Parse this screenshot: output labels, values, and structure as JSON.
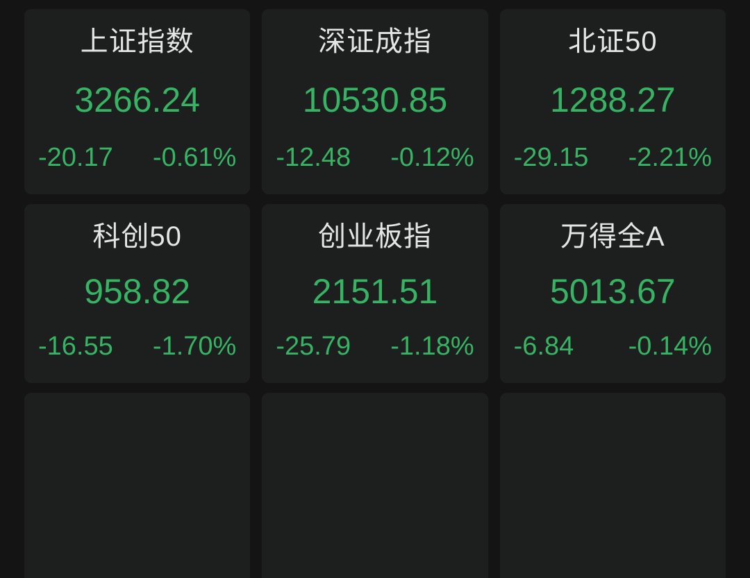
{
  "colors": {
    "page_background": "#131413",
    "card_background": "#1d1f1e",
    "title_text": "#e4e6e5",
    "down_green": "#37b463"
  },
  "cards": [
    {
      "title": "上证指数",
      "value": "3266.24",
      "change": "-20.17",
      "pct": "-0.61%"
    },
    {
      "title": "深证成指",
      "value": "10530.85",
      "change": "-12.48",
      "pct": "-0.12%"
    },
    {
      "title": "北证50",
      "value": "1288.27",
      "change": "-29.15",
      "pct": "-2.21%"
    },
    {
      "title": "科创50",
      "value": "958.82",
      "change": "-16.55",
      "pct": "-1.70%"
    },
    {
      "title": "创业板指",
      "value": "2151.51",
      "change": "-25.79",
      "pct": "-1.18%"
    },
    {
      "title": "万得全A",
      "value": "5013.67",
      "change": "-6.84",
      "pct": "-0.14%"
    }
  ]
}
